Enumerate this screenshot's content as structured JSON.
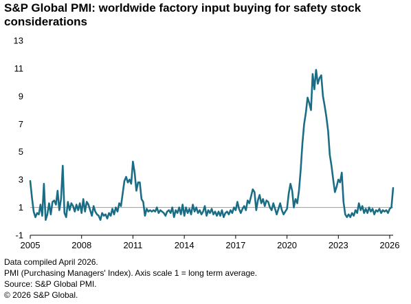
{
  "title": "S&P Global PMI: worldwide  factory input buying for safety stock considerations",
  "footnotes": [
    "Data compiled April 2026.",
    "PMI (Purchasing Managers' Index). Axis scale 1 = long term average.",
    "Source: S&P Global PMI.",
    "© 2026 S&P Global."
  ],
  "colors": {
    "series": "#1b6d86",
    "reference_line": "#a6a6a6",
    "axis": "#000000"
  },
  "chart_data": {
    "type": "line",
    "title": "S&P Global PMI: worldwide  factory input buying for safety stock considerations",
    "xlabel": "",
    "ylabel": "",
    "xlim": [
      2005,
      2026.2
    ],
    "ylim": [
      -1,
      13
    ],
    "x_ticks": [
      2005,
      2008,
      2011,
      2014,
      2017,
      2020,
      2023,
      2026
    ],
    "x_tick_labels": [
      "2005",
      "2008",
      "2011",
      "2014",
      "2017",
      "2020",
      "2023",
      "2026"
    ],
    "y_ticks": [
      -1,
      1,
      3,
      5,
      7,
      9,
      11,
      13
    ],
    "y_tick_labels": [
      "-1",
      "1",
      "3",
      "5",
      "7",
      "9",
      "11",
      "13"
    ],
    "reference_line": 1,
    "grid": false,
    "legend": "none",
    "series": [
      {
        "x": [
          2005.0,
          2005.1,
          2005.2,
          2005.3,
          2005.4,
          2005.5,
          2005.6,
          2005.7,
          2005.8,
          2005.9,
          2006.0,
          2006.1,
          2006.2,
          2006.3,
          2006.4,
          2006.5,
          2006.6,
          2006.7,
          2006.8,
          2006.9,
          2007.0,
          2007.1,
          2007.2,
          2007.3,
          2007.4,
          2007.5,
          2007.6,
          2007.7,
          2007.8,
          2007.9,
          2008.0,
          2008.1,
          2008.2,
          2008.3,
          2008.4,
          2008.5,
          2008.6,
          2008.7,
          2008.8,
          2008.9,
          2009.0,
          2009.1,
          2009.2,
          2009.3,
          2009.4,
          2009.5,
          2009.6,
          2009.7,
          2009.8,
          2009.9,
          2010.0,
          2010.1,
          2010.2,
          2010.3,
          2010.4,
          2010.5,
          2010.6,
          2010.7,
          2010.8,
          2010.9,
          2011.0,
          2011.1,
          2011.2,
          2011.3,
          2011.4,
          2011.5,
          2011.6,
          2011.7,
          2011.8,
          2011.9,
          2012.0,
          2012.1,
          2012.2,
          2012.3,
          2012.4,
          2012.5,
          2012.6,
          2012.7,
          2012.8,
          2012.9,
          2013.0,
          2013.1,
          2013.2,
          2013.3,
          2013.4,
          2013.5,
          2013.6,
          2013.7,
          2013.8,
          2013.9,
          2014.0,
          2014.1,
          2014.2,
          2014.3,
          2014.4,
          2014.5,
          2014.6,
          2014.7,
          2014.8,
          2014.9,
          2015.0,
          2015.1,
          2015.2,
          2015.3,
          2015.4,
          2015.5,
          2015.6,
          2015.7,
          2015.8,
          2015.9,
          2016.0,
          2016.1,
          2016.2,
          2016.3,
          2016.4,
          2016.5,
          2016.6,
          2016.7,
          2016.8,
          2016.9,
          2017.0,
          2017.1,
          2017.2,
          2017.3,
          2017.4,
          2017.5,
          2017.6,
          2017.7,
          2017.8,
          2017.9,
          2018.0,
          2018.1,
          2018.2,
          2018.3,
          2018.4,
          2018.5,
          2018.6,
          2018.7,
          2018.8,
          2018.9,
          2019.0,
          2019.1,
          2019.2,
          2019.3,
          2019.4,
          2019.5,
          2019.6,
          2019.7,
          2019.8,
          2019.9,
          2020.0,
          2020.1,
          2020.2,
          2020.3,
          2020.4,
          2020.5,
          2020.6,
          2020.7,
          2020.8,
          2020.9,
          2021.0,
          2021.1,
          2021.2,
          2021.3,
          2021.4,
          2021.5,
          2021.6,
          2021.7,
          2021.8,
          2021.9,
          2022.0,
          2022.1,
          2022.2,
          2022.3,
          2022.4,
          2022.5,
          2022.6,
          2022.7,
          2022.8,
          2022.9,
          2023.0,
          2023.1,
          2023.2,
          2023.3,
          2023.4,
          2023.5,
          2023.6,
          2023.7,
          2023.8,
          2023.9,
          2024.0,
          2024.1,
          2024.2,
          2024.3,
          2024.4,
          2024.5,
          2024.6,
          2024.7,
          2024.8,
          2024.9,
          2025.0,
          2025.1,
          2025.2,
          2025.3,
          2025.4,
          2025.5,
          2025.6,
          2025.7,
          2025.8,
          2025.9,
          2026.0,
          2026.1,
          2026.2
        ],
        "y": [
          2.9,
          1.7,
          0.7,
          0.3,
          0.6,
          0.5,
          1.2,
          0.4,
          2.7,
          0.1,
          0.5,
          1.3,
          0.5,
          1.4,
          1.5,
          1.2,
          2.2,
          0.8,
          1.6,
          4.0,
          0.6,
          0.3,
          1.4,
          0.8,
          1.3,
          1.1,
          0.7,
          1.2,
          0.8,
          1.3,
          0.6,
          1.6,
          0.7,
          1.4,
          1.2,
          0.8,
          0.4,
          1.1,
          0.7,
          0.5,
          0.4,
          0.1,
          0.6,
          0.4,
          0.5,
          0.2,
          0.6,
          0.4,
          0.9,
          0.5,
          1.0,
          0.7,
          1.3,
          1.1,
          2.0,
          2.9,
          3.2,
          2.8,
          3.0,
          2.7,
          4.3,
          3.5,
          2.2,
          2.8,
          2.8,
          1.6,
          1.4,
          0.4,
          0.9,
          0.7,
          0.8,
          0.7,
          0.8,
          0.7,
          1.0,
          0.6,
          0.8,
          0.7,
          0.6,
          0.4,
          0.7,
          0.8,
          0.6,
          1.0,
          0.3,
          0.8,
          0.6,
          1.0,
          0.5,
          1.2,
          0.4,
          1.0,
          0.6,
          0.9,
          0.5,
          1.2,
          0.7,
          1.0,
          0.6,
          0.8,
          0.5,
          0.7,
          1.1,
          0.4,
          0.8,
          0.6,
          0.9,
          0.5,
          0.7,
          0.4,
          0.7,
          0.4,
          0.8,
          0.3,
          0.6,
          0.7,
          0.5,
          0.8,
          0.6,
          1.0,
          0.8,
          1.4,
          0.9,
          0.6,
          0.9,
          1.1,
          0.8,
          1.5,
          1.3,
          1.8,
          2.3,
          2.1,
          0.8,
          1.5,
          1.9,
          1.3,
          1.6,
          1.1,
          1.5,
          1.4,
          1.0,
          0.8,
          1.3,
          0.9,
          0.5,
          0.9,
          1.3,
          0.8,
          0.5,
          0.7,
          0.9,
          2.0,
          2.7,
          2.2,
          1.0,
          1.6,
          1.3,
          2.2,
          3.7,
          5.6,
          7.0,
          7.8,
          8.9,
          8.5,
          8.0,
          10.6,
          9.5,
          10.9,
          9.9,
          10.3,
          10.5,
          9.0,
          8.3,
          7.5,
          6.5,
          4.8,
          4.0,
          3.0,
          2.1,
          2.5,
          3.0,
          2.8,
          3.5,
          1.4,
          0.5,
          0.3,
          0.5,
          0.3,
          0.6,
          0.4,
          0.8,
          0.6,
          1.3,
          0.8,
          1.1,
          0.6,
          0.9,
          0.6,
          1.0,
          0.7,
          0.9,
          0.5,
          0.8,
          0.7,
          0.9,
          0.6,
          0.8,
          0.7,
          0.8,
          0.6,
          0.9,
          1.0,
          2.4
        ]
      }
    ]
  }
}
